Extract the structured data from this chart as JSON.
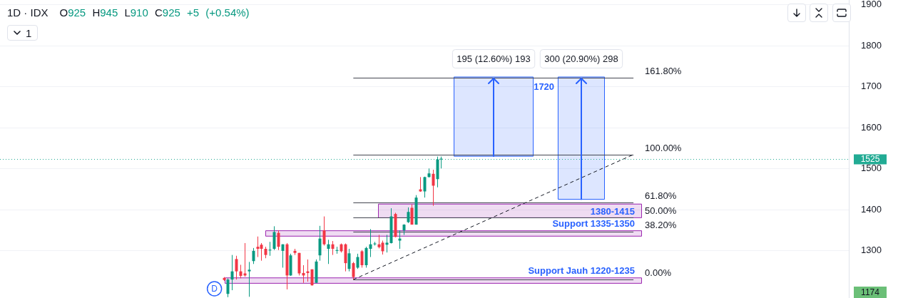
{
  "chart_data": {
    "type": "candlestick",
    "title": "1D · IDX",
    "subtitle": "O925 H945 L910 C925 +5 (+0.54%)",
    "categories": [
      null,
      null,
      null,
      null,
      null,
      null,
      null,
      null,
      null,
      null,
      null,
      null,
      null,
      null,
      null,
      null,
      null,
      null,
      null,
      null,
      null,
      null,
      null,
      null,
      null,
      null,
      null,
      null,
      null,
      null,
      null,
      null,
      null,
      null,
      null,
      null,
      null,
      null,
      null,
      null,
      null,
      null,
      null,
      null,
      null,
      null,
      null,
      null,
      null,
      null,
      null,
      null,
      null,
      null,
      null,
      null,
      null,
      null,
      null,
      null,
      null,
      null,
      null,
      null,
      null,
      null,
      null,
      null,
      null,
      null,
      null,
      null,
      null,
      null,
      null,
      null,
      null,
      null,
      null,
      null,
      null,
      null,
      null,
      null,
      null,
      null,
      null,
      null,
      null,
      null,
      null,
      null,
      null,
      null,
      null,
      null,
      null,
      null,
      null,
      null,
      null,
      null,
      null,
      null,
      null,
      null,
      null,
      null,
      null,
      null,
      null,
      null,
      null,
      null,
      null,
      null,
      null,
      null,
      null,
      null,
      null,
      null,
      null,
      null,
      null,
      null,
      null,
      null,
      null,
      null,
      null,
      null,
      null,
      null,
      null,
      null,
      null,
      null,
      null,
      null,
      null,
      null,
      null,
      null,
      null,
      null,
      null,
      null,
      null,
      null,
      null,
      null,
      null,
      null,
      null,
      null,
      null,
      null,
      null,
      null,
      null,
      null,
      null,
      null,
      null,
      null,
      null,
      null,
      null,
      null,
      null,
      null,
      null,
      null,
      null,
      null,
      null,
      null,
      null,
      null,
      null,
      null,
      null,
      null,
      null,
      null,
      null,
      null,
      null,
      null,
      null,
      null,
      null,
      null,
      null,
      null,
      null,
      null,
      null,
      null,
      null,
      null,
      null
    ],
    "ohlc": [
      null,
      null,
      null,
      null,
      null,
      null,
      null,
      null,
      null,
      null,
      null,
      null,
      null,
      null,
      null,
      null,
      null,
      null,
      null,
      null,
      null,
      null,
      null,
      null,
      null,
      null,
      null,
      null,
      null,
      null,
      null,
      null,
      null,
      null,
      null,
      null,
      null,
      null,
      null,
      null,
      null,
      null,
      null,
      null,
      null,
      null,
      null,
      null,
      null,
      null,
      null,
      null,
      null,
      [
        1234,
        1236,
        1227,
        1229
      ],
      [
        1195,
        1233,
        1187,
        1230
      ],
      [
        1230,
        1290,
        1204,
        1250
      ],
      [
        1280,
        1288,
        1230,
        1250
      ],
      [
        1250,
        1266,
        1233,
        1239
      ],
      [
        1245,
        1319,
        1237,
        1240
      ],
      [
        1250,
        1273,
        1188,
        1254
      ],
      [
        1275,
        1307,
        1268,
        1300
      ],
      [
        1310,
        1335,
        1285,
        1305
      ],
      [
        1315,
        1319,
        1276,
        1305
      ],
      [
        1305,
        1310,
        1282,
        1290
      ],
      [
        1301,
        1322,
        1288,
        1303
      ],
      [
        1305,
        1360,
        1302,
        1346
      ],
      [
        1344,
        1350,
        1302,
        1310
      ],
      [
        1300,
        1316,
        1259,
        1316
      ],
      [
        1316,
        1319,
        1206,
        1240
      ],
      [
        1240,
        1293,
        1239,
        1289
      ],
      [
        1300,
        1305,
        1290,
        1295
      ],
      [
        1295,
        1295,
        1240,
        1245
      ],
      [
        1246,
        1265,
        1222,
        1240
      ],
      [
        1250,
        1279,
        1225,
        1246
      ],
      [
        1255,
        1255,
        1215,
        1216
      ],
      [
        1222,
        1279,
        1222,
        1274
      ],
      [
        1289,
        1361,
        1276,
        1330
      ],
      [
        1350,
        1384,
        1313,
        1316
      ],
      [
        1305,
        1327,
        1268,
        1316
      ],
      [
        1316,
        1324,
        1290,
        1305
      ],
      [
        1300,
        1310,
        1293,
        1302
      ],
      [
        1316,
        1318,
        1296,
        1299
      ],
      [
        1316,
        1318,
        1250,
        1270
      ],
      [
        1256,
        1305,
        1250,
        1294
      ],
      [
        1270,
        1273,
        1230,
        1236
      ],
      [
        1259,
        1293,
        1256,
        1285
      ],
      [
        1299,
        1302,
        1259,
        1265
      ],
      [
        1265,
        1310,
        1259,
        1307
      ],
      [
        1305,
        1353,
        1285,
        1316
      ],
      [
        1316,
        1322,
        1313,
        1318
      ],
      [
        1316,
        1339,
        1306,
        1309
      ],
      [
        1320,
        1325,
        1291,
        1299
      ],
      [
        1315,
        1339,
        1296,
        1320
      ],
      [
        1319,
        1404,
        1318,
        1384
      ],
      [
        1390,
        1393,
        1333,
        1334
      ],
      [
        1325,
        1350,
        1305,
        1330
      ],
      [
        1350,
        1365,
        1339,
        1364
      ],
      [
        1370,
        1406,
        1368,
        1395
      ],
      [
        1405,
        1413,
        1364,
        1364
      ],
      [
        1364,
        1436,
        1364,
        1430
      ],
      [
        1450,
        1480,
        1444,
        1445
      ],
      [
        1445,
        1481,
        1430,
        1480
      ],
      [
        1480,
        1501,
        1479,
        1489
      ],
      [
        1488,
        1498,
        1410,
        1459
      ],
      [
        1475,
        1530,
        1455,
        1523
      ],
      [
        1523,
        1530,
        1501,
        1525
      ],
      null,
      null,
      null,
      null,
      null,
      null,
      null,
      null,
      null,
      null,
      null,
      null,
      null,
      null,
      null,
      null,
      null,
      null,
      null,
      null,
      null,
      null,
      null,
      null,
      null,
      null,
      null,
      null,
      null,
      null,
      null,
      null,
      null,
      null,
      null,
      null,
      null,
      null,
      null,
      null,
      null,
      null,
      null,
      null,
      null,
      null,
      null,
      null,
      null,
      null,
      null,
      null,
      null,
      null,
      null,
      null,
      null,
      null,
      null,
      null,
      null,
      null,
      null,
      null,
      null,
      null,
      null,
      null,
      null,
      null,
      null,
      null,
      null,
      null,
      null,
      null,
      null,
      null,
      null,
      null,
      null,
      null,
      null,
      null,
      null,
      null,
      null,
      null,
      null,
      null,
      null,
      null,
      null,
      null,
      null,
      null,
      null
    ],
    "series": [
      {
        "type": "line",
        "color": "#131722",
        "line_style": "dashed",
        "values": [
          null,
          null,
          null,
          null,
          null,
          null,
          null,
          null,
          null,
          null,
          null,
          null,
          null,
          null,
          null,
          null,
          null,
          null,
          null,
          null,
          null,
          null,
          null,
          null,
          null,
          null,
          null,
          null,
          null,
          null,
          null,
          null,
          null,
          null,
          null,
          null,
          null,
          null,
          null,
          null,
          null,
          null,
          null,
          null,
          null,
          null,
          null,
          null,
          null,
          null,
          null,
          null,
          null,
          null,
          null,
          null,
          null,
          null,
          null,
          null,
          null,
          null,
          null,
          null,
          null,
          null,
          null,
          null,
          null,
          null,
          null,
          null,
          null,
          null,
          null,
          null,
          null,
          null,
          null,
          null,
          null,
          null,
          null,
          null,
          1230,
          null,
          null,
          null,
          null,
          null,
          null,
          null,
          null,
          null,
          null,
          null,
          null,
          null,
          null,
          null,
          null,
          null,
          null,
          null,
          null,
          null,
          null,
          null,
          null,
          null,
          null,
          null,
          null,
          null,
          null,
          null,
          null,
          null,
          null,
          null,
          null,
          null,
          null,
          null,
          null,
          null,
          null,
          null,
          null,
          null,
          null,
          null,
          null,
          null,
          null,
          null,
          null,
          null,
          null,
          null,
          null,
          null,
          null,
          null,
          null,
          null,
          null,
          null,
          null,
          null,
          null,
          1535,
          null,
          null,
          null,
          null,
          null,
          null,
          null,
          null,
          null,
          null,
          null,
          null,
          null,
          null,
          null,
          null,
          null,
          null,
          null,
          null,
          null,
          null,
          null,
          null,
          null,
          null,
          null,
          null,
          null,
          null,
          null,
          null,
          null,
          null,
          null,
          null,
          null,
          null,
          null,
          null,
          null,
          null,
          null,
          null,
          null,
          null,
          null,
          null,
          null,
          null,
          null
        ]
      }
    ],
    "marker": "none",
    "ylim": [
      1185,
      1912
    ],
    "yticks": [
      1300,
      1400,
      1500,
      1600,
      1700,
      1800,
      1900
    ],
    "tick_labels": "y",
    "grid": "y",
    "ref_lines": [
      {
        "axis": "y",
        "value": 1723,
        "color": "#434651"
      },
      {
        "axis": "y",
        "value": 1535,
        "color": "#434651"
      },
      {
        "axis": "y",
        "value": 1418,
        "color": "#434651"
      },
      {
        "axis": "y",
        "value": 1382,
        "color": "#434651"
      },
      {
        "axis": "y",
        "value": 1347,
        "color": "#434651"
      },
      {
        "axis": "y",
        "value": 1230,
        "color": "#434651"
      },
      {
        "axis": "y",
        "value": 1525,
        "label": "1525",
        "color": "#22ab94",
        "line_style": "dotted"
      }
    ],
    "bands": [
      {
        "axis": "y",
        "from": 1380,
        "to": 1415,
        "label": "1380-1415",
        "color": "#9c27b0"
      },
      {
        "axis": "y",
        "from": 1335,
        "to": 1350,
        "label": "Support 1335-1350",
        "color": "#9c27b0"
      },
      {
        "axis": "y",
        "from": 1220,
        "to": 1235,
        "label": "Support Jauh 1220-1235",
        "color": "#9c27b0"
      },
      {
        "axis": "y",
        "from": 1530,
        "to": 1725,
        "label": "195 (12.60%) 193",
        "color": "#2962ff"
      },
      {
        "axis": "y",
        "from": 1425,
        "to": 1725,
        "label": "300 (20.90%) 298",
        "color": "#2962ff"
      }
    ],
    "annotations": [
      {
        "text": "1720",
        "y": 1720
      },
      "161.80%",
      "100.00%",
      "61.80%",
      "50.00%",
      "38.20%",
      "0.00%",
      "1",
      "D",
      "1174"
    ]
  }
}
